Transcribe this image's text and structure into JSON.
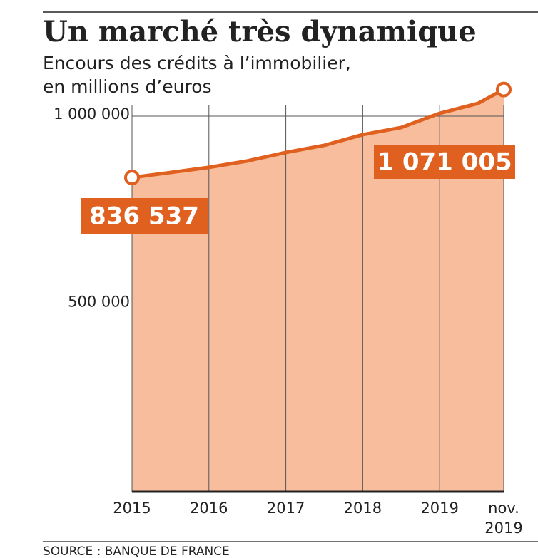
{
  "chart_data": {
    "type": "area",
    "title": "Un marché très dynamique",
    "subtitle": [
      "Encours des crédits à l’immobilier,",
      "en millions d’euros"
    ],
    "source": "SOURCE : BANQUE DE FRANCE",
    "x": [
      2015,
      2015.5,
      2016,
      2016.5,
      2017,
      2017.5,
      2018,
      2018.5,
      2019,
      2019.5,
      2019.8333
    ],
    "values": [
      836537,
      850000,
      863600,
      880700,
      903400,
      922300,
      950800,
      969700,
      1007600,
      1034000,
      1071005
    ],
    "value_labels": [
      "836 537",
      null,
      null,
      null,
      null,
      null,
      null,
      null,
      null,
      null,
      "1 071 005"
    ],
    "color": "#e0601f",
    "fill": "#f8bd9c",
    "xlim": [
      2015,
      2019.8333
    ],
    "xticks": [
      2015,
      2016,
      2017,
      2018,
      2019,
      {
        "value": 2019.8333,
        "label": "nov. 2019"
      }
    ],
    "ylim": [
      0,
      1000000
    ],
    "yticks": [
      {
        "value": 500000,
        "label": "500 000"
      },
      {
        "value": 1000000,
        "label": "1 000 000"
      }
    ],
    "grid": true
  }
}
